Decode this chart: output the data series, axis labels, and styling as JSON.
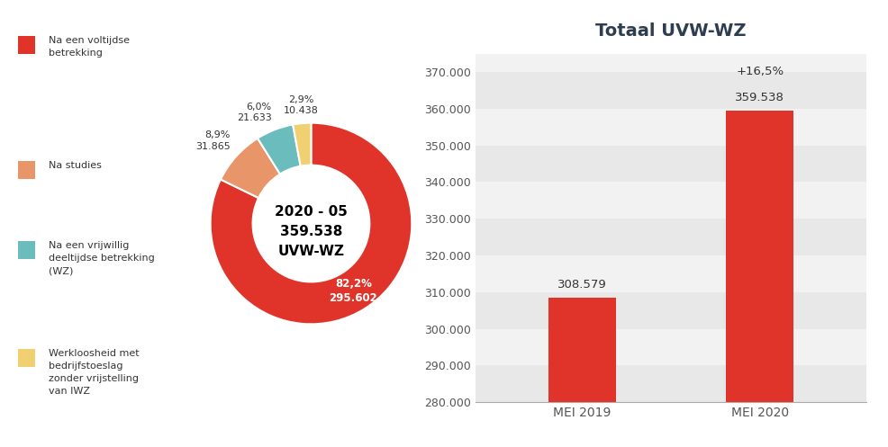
{
  "donut": {
    "values": [
      295602,
      31865,
      21633,
      10438
    ],
    "percentages": [
      "82,2%",
      "8,9%",
      "6,0%",
      "2,9%"
    ],
    "labels_count": [
      "295.602",
      "31.865",
      "21.633",
      "10.438"
    ],
    "colors": [
      "#E0342A",
      "#E8956A",
      "#6BBCBC",
      "#F0D070"
    ],
    "pct_colors": [
      "white",
      "#333333",
      "#333333",
      "#333333"
    ],
    "center_line1": "2020 - 05",
    "center_line2": "359.538",
    "center_line3": "UVW-WZ",
    "legend_labels": [
      "Na een voltijdse\nbetrekking",
      "Na studies",
      "Na een vrijwillig\ndeeltijdse betrekking\n(WZ)",
      "Werkloosheid met\nbedrijfstoeslag\nzonder vrijstelling\nvan IWZ"
    ],
    "legend_colors": [
      "#E0342A",
      "#E8956A",
      "#6BBCBC",
      "#F0D070"
    ]
  },
  "bar": {
    "categories": [
      "MEI 2019",
      "MEI 2020"
    ],
    "values": [
      308579,
      359538
    ],
    "bar_color": "#E0342A",
    "bar_labels": [
      "308.579",
      "359.538"
    ],
    "bar_label2": "+16,5%",
    "title": "Totaal UVW-WZ",
    "ylim": [
      280000,
      375000
    ],
    "yticks": [
      280000,
      290000,
      300000,
      310000,
      320000,
      330000,
      340000,
      350000,
      360000,
      370000
    ],
    "ytick_labels": [
      "280.000",
      "290.000",
      "300.000",
      "310.000",
      "320.000",
      "330.000",
      "340.000",
      "350.000",
      "360.000",
      "370.000"
    ]
  }
}
